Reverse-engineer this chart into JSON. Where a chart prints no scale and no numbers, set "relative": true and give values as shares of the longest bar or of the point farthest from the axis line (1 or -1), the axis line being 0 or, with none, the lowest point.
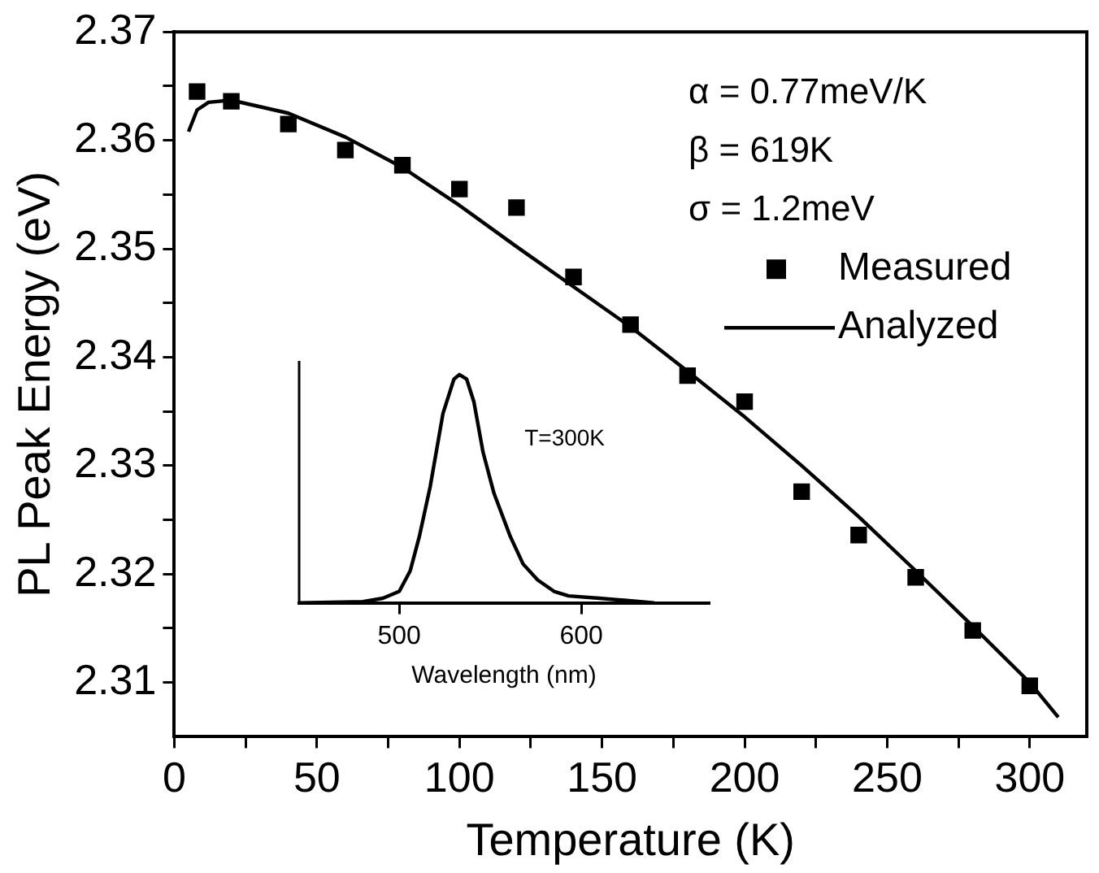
{
  "chart_data": [
    {
      "type": "scatter",
      "xlabel": "Temperature (K)",
      "ylabel": "PL Peak Energy (eV)",
      "xlim": [
        0,
        320
      ],
      "xticks": [
        0,
        {
          "value": 25,
          "label": null
        },
        50,
        {
          "value": 75,
          "label": null
        },
        100,
        {
          "value": 125,
          "label": null
        },
        150,
        {
          "value": 175,
          "label": null
        },
        200,
        {
          "value": 225,
          "label": null
        },
        250,
        {
          "value": 275,
          "label": null
        },
        300
      ],
      "ylim": [
        2.305,
        2.37
      ],
      "yticks": [
        2.31,
        {
          "value": 2.315,
          "label": null
        },
        2.32,
        {
          "value": 2.325,
          "label": null
        },
        2.33,
        {
          "value": 2.335,
          "label": null
        },
        2.34,
        {
          "value": 2.345,
          "label": null
        },
        2.35,
        {
          "value": 2.355,
          "label": null
        },
        2.36,
        {
          "value": 2.365,
          "label": null
        },
        2.37
      ],
      "annotations": [
        "α = 0.77meV/K",
        "β = 619K",
        "σ = 1.2meV"
      ],
      "legend": "top right",
      "grid": false,
      "series": [
        {
          "name": "Measured",
          "type": "scatter",
          "marker": "square",
          "color": "#000000",
          "x": [
            8,
            20,
            40,
            60,
            80,
            100,
            120,
            140,
            160,
            180,
            200,
            220,
            240,
            260,
            280,
            300
          ],
          "values": [
            2.3645,
            2.3636,
            2.3615,
            2.3591,
            2.3577,
            2.3555,
            2.3538,
            2.3474,
            2.343,
            2.3383,
            2.3359,
            2.3276,
            2.3236,
            2.3197,
            2.3148,
            2.3097
          ]
        },
        {
          "name": "Analyzed",
          "type": "line",
          "marker": "none",
          "line_style": "solid",
          "color": "#000000",
          "x": [
            5,
            8,
            12,
            20,
            40,
            60,
            80,
            100,
            120,
            140,
            160,
            180,
            200,
            220,
            240,
            260,
            280,
            300,
            310
          ],
          "values": [
            2.3608,
            2.3628,
            2.3635,
            2.3637,
            2.3625,
            2.3603,
            2.3575,
            2.354,
            2.3502,
            2.3465,
            2.3428,
            2.3387,
            2.3345,
            2.33,
            2.3253,
            2.3203,
            2.3152,
            2.31,
            2.3068
          ]
        }
      ]
    },
    {
      "type": "line",
      "relative": true,
      "xlabel": "Wavelength (nm)",
      "xlim": [
        445,
        670
      ],
      "xticks": [
        500,
        600
      ],
      "annotations": [
        "T=300K"
      ],
      "grid": false,
      "legend": false,
      "tick_labels": "x",
      "series": [
        {
          "color": "#000000",
          "line_style": "solid",
          "marker": "none",
          "x": [
            445,
            480,
            491,
            500,
            506,
            511,
            517,
            524,
            530,
            533,
            537,
            541,
            546,
            552,
            561,
            568,
            576,
            585,
            593,
            610,
            625,
            640
          ],
          "values": [
            0,
            0.005,
            0.02,
            0.05,
            0.14,
            0.29,
            0.51,
            0.83,
            0.98,
            1,
            0.98,
            0.88,
            0.66,
            0.48,
            0.29,
            0.17,
            0.1,
            0.05,
            0.03,
            0.02,
            0.01,
            0
          ]
        }
      ]
    }
  ]
}
